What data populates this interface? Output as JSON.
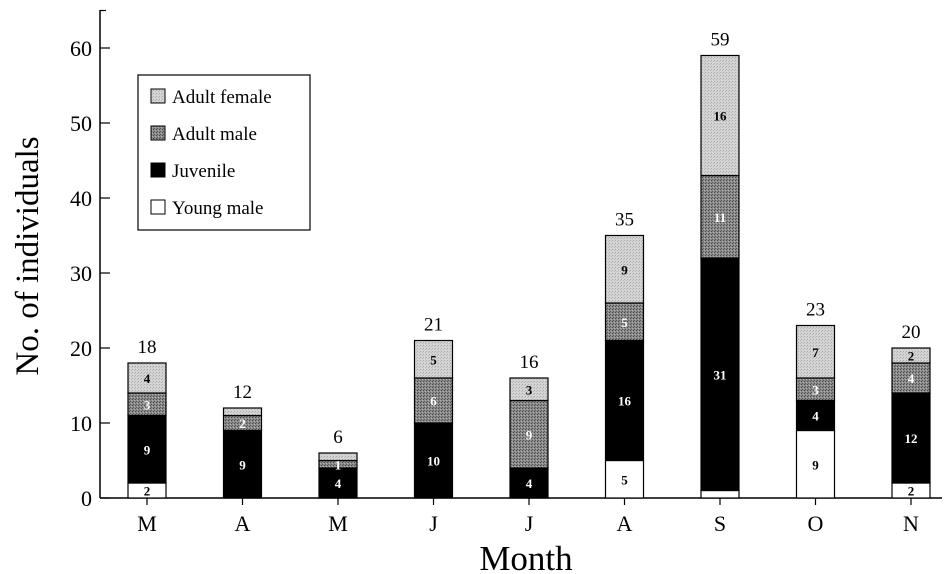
{
  "chart_data": {
    "type": "bar",
    "stacked": true,
    "title": "",
    "xlabel": "Month",
    "ylabel": "No. of individuals",
    "ylim": [
      0,
      65
    ],
    "yticks": [
      "0",
      "10",
      "20",
      "30",
      "40",
      "50",
      "60"
    ],
    "categories": [
      "M",
      "A",
      "M",
      "J",
      "J",
      "A",
      "S",
      "O",
      "N"
    ],
    "series": [
      {
        "name": "Young male",
        "values": [
          2,
          0,
          0,
          0,
          0,
          5,
          1,
          9,
          2
        ],
        "labels": [
          "2",
          "",
          "",
          "",
          "",
          "5",
          "",
          "9",
          "2"
        ]
      },
      {
        "name": "Juvenile",
        "values": [
          9,
          9,
          4,
          10,
          4,
          16,
          31,
          4,
          12
        ],
        "labels": [
          "9",
          "9",
          "4",
          "10",
          "4",
          "16",
          "31",
          "4",
          "12"
        ]
      },
      {
        "name": "Adult male",
        "values": [
          3,
          2,
          1,
          6,
          9,
          5,
          11,
          3,
          4
        ],
        "labels": [
          "3",
          "2",
          "1",
          "6",
          "9",
          "5",
          "11",
          "3",
          "4"
        ]
      },
      {
        "name": "Adult female",
        "values": [
          4,
          1,
          1,
          5,
          3,
          9,
          16,
          7,
          2
        ],
        "labels": [
          "4",
          "",
          "",
          "5",
          "3",
          "9",
          "16",
          "7",
          "2"
        ]
      }
    ],
    "totals": [
      "18",
      "12",
      "6",
      "21",
      "16",
      "35",
      "59",
      "23",
      "20"
    ],
    "legend": {
      "position": "top-left",
      "entries": [
        "Adult female",
        "Adult male",
        "Juvenile",
        "Young male"
      ]
    },
    "grid": false
  }
}
